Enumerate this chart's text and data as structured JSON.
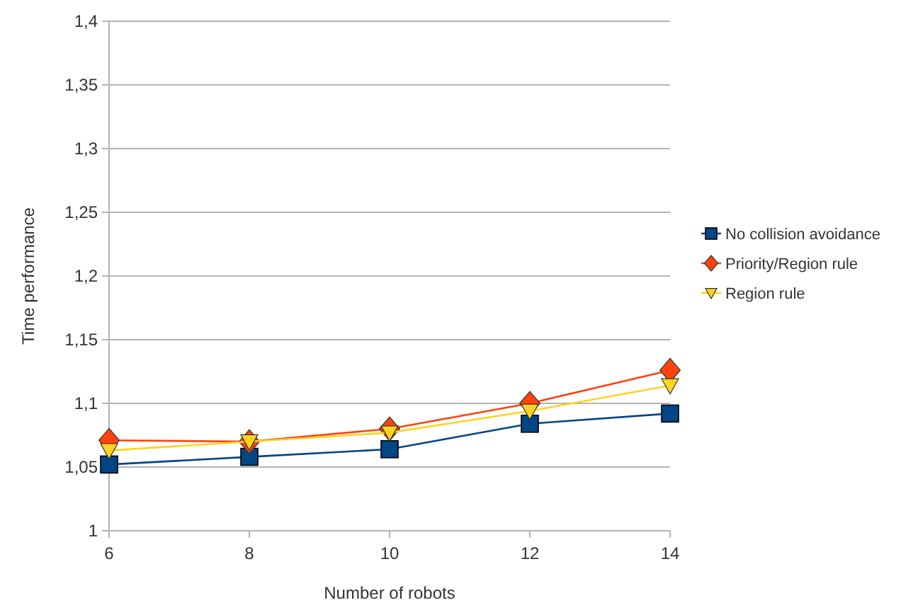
{
  "chart_data": {
    "type": "line",
    "xlabel": "Number of robots",
    "ylabel": "Time performance",
    "x": [
      6,
      8,
      10,
      12,
      14
    ],
    "xlim": [
      6,
      14
    ],
    "xticks": [
      6,
      8,
      10,
      12,
      14
    ],
    "ylim": [
      1,
      1.4
    ],
    "yticks": [
      {
        "value": 1,
        "label": "1"
      },
      {
        "value": 1.05,
        "label": "1,05"
      },
      {
        "value": 1.1,
        "label": "1,1"
      },
      {
        "value": 1.15,
        "label": "1,15"
      },
      {
        "value": 1.2,
        "label": "1,2"
      },
      {
        "value": 1.25,
        "label": "1,25"
      },
      {
        "value": 1.3,
        "label": "1,3"
      },
      {
        "value": 1.35,
        "label": "1,35"
      },
      {
        "value": 1.4,
        "label": "1,4"
      }
    ],
    "grid": "y",
    "legend": "right",
    "series": [
      {
        "name": "No collision avoidance",
        "color": "#004586",
        "marker": "square",
        "values": [
          1.052,
          1.058,
          1.064,
          1.084,
          1.092
        ]
      },
      {
        "name": "Priority/Region rule",
        "color": "#ff420e",
        "marker": "diamond",
        "values": [
          1.071,
          1.07,
          1.08,
          1.1,
          1.126
        ]
      },
      {
        "name": "Region rule",
        "color": "#ffd320",
        "marker": "triangle",
        "values": [
          1.063,
          1.07,
          1.077,
          1.094,
          1.114
        ]
      }
    ]
  }
}
